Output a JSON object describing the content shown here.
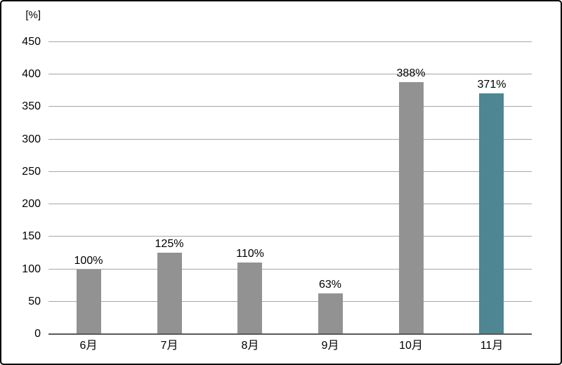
{
  "chart_data": {
    "type": "bar",
    "title": "",
    "unit_label": "[%]",
    "categories": [
      "6月",
      "7月",
      "8月",
      "9月",
      "10月",
      "11月"
    ],
    "values": [
      100,
      125,
      110,
      63,
      388,
      371
    ],
    "data_labels": [
      "100%",
      "125%",
      "110%",
      "63%",
      "388%",
      "371%"
    ],
    "ylim": [
      0,
      450
    ],
    "ytick_step": 50,
    "yticks": [
      0,
      50,
      100,
      150,
      200,
      250,
      300,
      350,
      400,
      450
    ],
    "grid": true,
    "legend": "none",
    "highlight_index": 5,
    "colors": {
      "bar_default": "#929292",
      "bar_highlight": "#4E8693",
      "gridline": "#A6A6A6",
      "axis_line": "#595959",
      "text": "#000000",
      "border": "#000000",
      "background": "#ffffff"
    }
  }
}
